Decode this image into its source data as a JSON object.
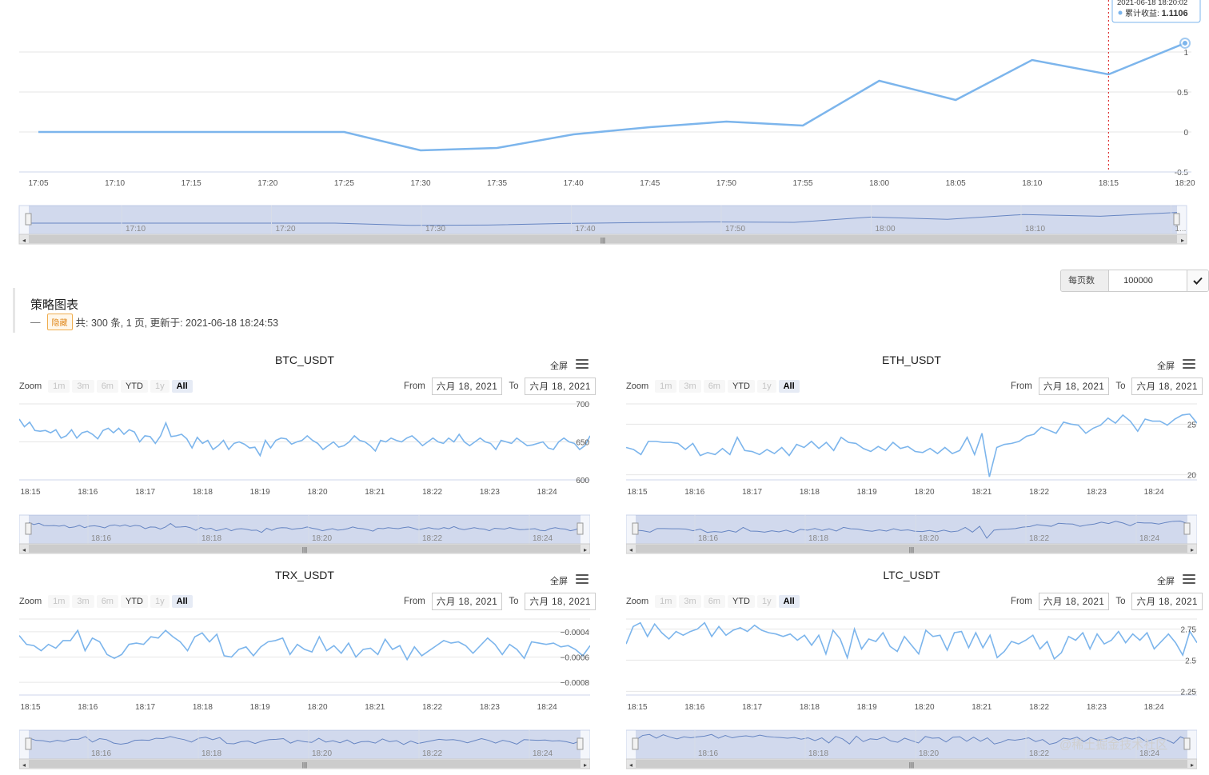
{
  "top_chart": {
    "chart_data": {
      "type": "line",
      "x": [
        "17:05",
        "17:10",
        "17:15",
        "17:20",
        "17:25",
        "17:30",
        "17:35",
        "17:40",
        "17:45",
        "17:50",
        "17:55",
        "18:00",
        "18:05",
        "18:10",
        "18:15",
        "18:20"
      ],
      "series": [
        {
          "name": "累计收益",
          "values": [
            0,
            0,
            0,
            0,
            0,
            -0.23,
            -0.2,
            -0.03,
            0.06,
            0.13,
            0.08,
            0.64,
            0.4,
            0.9,
            0.72,
            1.1106
          ]
        }
      ],
      "yticks": [
        1,
        0.5,
        0,
        -0.5
      ],
      "ylim": [
        -0.5,
        1.5
      ],
      "navigator_labels": [
        "17:10",
        "17:20",
        "17:30",
        "17:40",
        "17:50",
        "18:00",
        "18:10",
        "1..."
      ],
      "crosshair_x": "18:15",
      "line_color": "#7cb5ec"
    },
    "tooltip": {
      "time": "2021-06-18 18:20:02",
      "label": "累计收益:",
      "value": "1.1106"
    }
  },
  "pager": {
    "label": "每页数据",
    "value": "100000",
    "confirm_icon": "check-icon"
  },
  "strategy": {
    "title": "策略图表",
    "dash": "—",
    "hide_label": "隐藏",
    "info": "共: 300 条, 1 页, 更新于: 2021-06-18 18:24:53"
  },
  "common": {
    "fullscreen": "全屏",
    "zoom": "Zoom",
    "zoom_buttons": [
      "1m",
      "3m",
      "6m",
      "YTD",
      "1y",
      "All"
    ],
    "from": "From",
    "to": "To",
    "from_date": "六月 18, 2021",
    "to_date": "六月 18, 2021",
    "xticks": [
      "18:15",
      "18:16",
      "18:17",
      "18:18",
      "18:19",
      "18:20",
      "18:21",
      "18:22",
      "18:23",
      "18:24"
    ],
    "nav_labels": [
      "18:16",
      "18:18",
      "18:20",
      "18:22",
      "18:24"
    ]
  },
  "panels": [
    {
      "title": "BTC_USDT",
      "chart_data": {
        "type": "line",
        "yticks": [
          "700",
          "650",
          "600"
        ],
        "ylim": [
          600,
          700
        ],
        "values": [
          680,
          670,
          676,
          665,
          664,
          665,
          662,
          666,
          655,
          658,
          666,
          655,
          662,
          664,
          660,
          654,
          665,
          668,
          662,
          668,
          660,
          666,
          663,
          650,
          658,
          657,
          648,
          658,
          675,
          657,
          658,
          660,
          654,
          642,
          656,
          648,
          652,
          640,
          645,
          652,
          640,
          648,
          650,
          647,
          642,
          643,
          632,
          652,
          642,
          652,
          655,
          654,
          647,
          650,
          652,
          658,
          652,
          648,
          640,
          645,
          650,
          643,
          645,
          650,
          658,
          652,
          650,
          645,
          638,
          652,
          650,
          655,
          652,
          650,
          655,
          658,
          652,
          645,
          650,
          655,
          650,
          648,
          655,
          650,
          660,
          650,
          645,
          650,
          655,
          650,
          648,
          640,
          652,
          650,
          648,
          655,
          650,
          645,
          646,
          648,
          650,
          642,
          640,
          650,
          655,
          650,
          648,
          640,
          645,
          658
        ]
      }
    },
    {
      "title": "ETH_USDT",
      "chart_data": {
        "type": "line",
        "yticks": [
          "25",
          "20"
        ],
        "ylim": [
          19.5,
          27
        ],
        "values": [
          22.7,
          22.5,
          22.0,
          23.3,
          23.3,
          23.2,
          23.2,
          23.1,
          22.5,
          23.1,
          21.9,
          22.2,
          22.0,
          22.6,
          22.0,
          23.7,
          22.4,
          22.3,
          22.0,
          22.5,
          22.1,
          22.7,
          21.9,
          23.0,
          22.7,
          23.3,
          22.6,
          23.2,
          22.4,
          23.7,
          23.2,
          23.1,
          22.6,
          22.3,
          22.8,
          22.4,
          23.2,
          22.6,
          22.8,
          22.3,
          22.2,
          22.6,
          22.1,
          22.7,
          22.1,
          22.4,
          23.7,
          22.0,
          24.1,
          19.8,
          22.7,
          23.0,
          23.1,
          23.3,
          23.8,
          24.0,
          24.7,
          24.4,
          24.1,
          25.2,
          25.0,
          24.9,
          24.1,
          24.6,
          24.9,
          25.6,
          25.1,
          25.9,
          25.3,
          24.3,
          25.5,
          25.3,
          25.3,
          24.9,
          25.5,
          25.9,
          26.0,
          25.1
        ]
      }
    },
    {
      "title": "TRX_USDT",
      "chart_data": {
        "type": "line",
        "yticks": [
          "-0.0004",
          "-0.0006",
          "-0.0008"
        ],
        "ylim": [
          -0.0009,
          -0.0003
        ],
        "values": [
          -0.00043,
          -0.0005,
          -0.00051,
          -0.00055,
          -0.0005,
          -0.00053,
          -0.00047,
          -0.00047,
          -0.00039,
          -0.00055,
          -0.00045,
          -0.00048,
          -0.00058,
          -0.00061,
          -0.00058,
          -0.0005,
          -0.00049,
          -0.0005,
          -0.00044,
          -0.00045,
          -0.00039,
          -0.00044,
          -0.00048,
          -0.00055,
          -0.00044,
          -0.00041,
          -0.00048,
          -0.00042,
          -0.00059,
          -0.0006,
          -0.00054,
          -0.00052,
          -0.00059,
          -0.00052,
          -0.00048,
          -0.00047,
          -0.00045,
          -0.00058,
          -0.0005,
          -0.00054,
          -0.00056,
          -0.00044,
          -0.00055,
          -0.00051,
          -0.00057,
          -0.00049,
          -0.0006,
          -0.00054,
          -0.00053,
          -0.00058,
          -0.00046,
          -0.00054,
          -0.00051,
          -0.00062,
          -0.00052,
          -0.00059,
          -0.00055,
          -0.00051,
          -0.00047,
          -0.00049,
          -0.00048,
          -0.00051,
          -0.00057,
          -0.00051,
          -0.00045,
          -0.0005,
          -0.00058,
          -0.0005,
          -0.00054,
          -0.00061,
          -0.00048,
          -0.00049,
          -0.0005,
          -0.00049,
          -0.00052,
          -0.00051,
          -0.00054,
          -0.00059,
          -0.00051
        ]
      }
    },
    {
      "title": "LTC_USDT",
      "chart_data": {
        "type": "line",
        "yticks": [
          "2.75",
          "2.5",
          "2.25"
        ],
        "ylim": [
          2.22,
          2.83
        ],
        "values": [
          2.63,
          2.77,
          2.8,
          2.69,
          2.79,
          2.72,
          2.67,
          2.73,
          2.7,
          2.73,
          2.75,
          2.8,
          2.69,
          2.77,
          2.7,
          2.74,
          2.76,
          2.73,
          2.78,
          2.74,
          2.72,
          2.71,
          2.69,
          2.71,
          2.66,
          2.7,
          2.62,
          2.7,
          2.55,
          2.74,
          2.67,
          2.52,
          2.75,
          2.59,
          2.67,
          2.65,
          2.72,
          2.61,
          2.57,
          2.69,
          2.62,
          2.55,
          2.74,
          2.69,
          2.7,
          2.58,
          2.72,
          2.73,
          2.6,
          2.72,
          2.6,
          2.7,
          2.52,
          2.57,
          2.65,
          2.63,
          2.66,
          2.7,
          2.59,
          2.65,
          2.51,
          2.56,
          2.69,
          2.66,
          2.72,
          2.59,
          2.71,
          2.63,
          2.66,
          2.73,
          2.64,
          2.71,
          2.66,
          2.72,
          2.59,
          2.65,
          2.71,
          2.64,
          2.54,
          2.73,
          2.64
        ]
      }
    }
  ],
  "watermark": "@稀土掘金技术社区"
}
